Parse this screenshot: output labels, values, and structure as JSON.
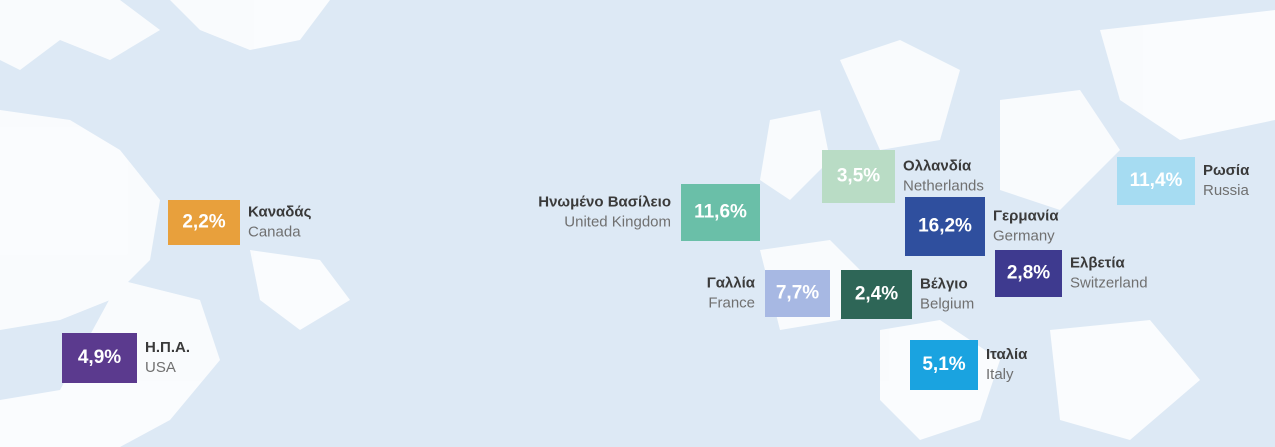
{
  "countries": [
    {
      "value": "2,2%",
      "name": "Καναδάς",
      "name_en": "Canada"
    },
    {
      "value": "4,9%",
      "name": "Η.Π.Α.",
      "name_en": "USA"
    },
    {
      "value": "11,6%",
      "name": "Ηνωμένο Βασίλειο",
      "name_en": "United Kingdom"
    },
    {
      "value": "3,5%",
      "name": "Ολλανδία",
      "name_en": "Netherlands"
    },
    {
      "value": "11,4%",
      "name": "Ρωσία",
      "name_en": "Russia"
    },
    {
      "value": "16,2%",
      "name": "Γερμανία",
      "name_en": "Germany"
    },
    {
      "value": "2,8%",
      "name": "Ελβετία",
      "name_en": "Switzerland"
    },
    {
      "value": "7,7%",
      "name": "Γαλλία",
      "name_en": "France"
    },
    {
      "value": "2,4%",
      "name": "Βέλγιο",
      "name_en": "Belgium"
    },
    {
      "value": "5,1%",
      "name": "Ιταλία",
      "name_en": "Italy"
    }
  ]
}
